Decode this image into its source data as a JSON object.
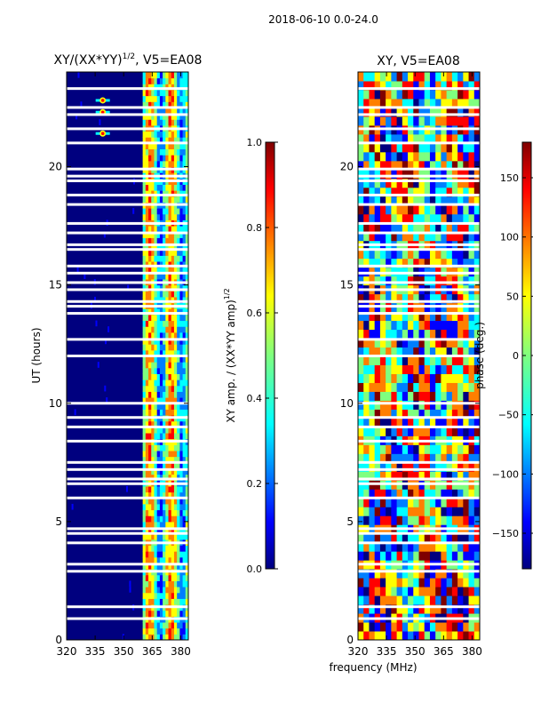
{
  "figure": {
    "suptitle": "2018-06-10 0.0-24.0",
    "xlabel_shared": "frequency (MHz)",
    "colors": {
      "background": "#00007f",
      "jet": [
        "#00007f",
        "#0000ff",
        "#007fff",
        "#00ffff",
        "#7fff7f",
        "#ffff00",
        "#ff7f00",
        "#ff0000",
        "#7f0000"
      ]
    }
  },
  "chart_data": [
    {
      "type": "heatmap",
      "name": "xy-normalized-amplitude",
      "title": "XY/(XX*YY)",
      "title_superscript": "1/2",
      "title_suffix": ", V5=EA08",
      "xlabel": "",
      "ylabel": "UT (hours)",
      "xlim": [
        320,
        384
      ],
      "ylim": [
        0,
        24
      ],
      "xticks": [
        "320",
        "335",
        "350",
        "365",
        "380"
      ],
      "xtick_values": [
        320,
        335,
        350,
        365,
        380
      ],
      "yticks": [
        "0",
        "5",
        "10",
        "15",
        "20"
      ],
      "ytick_values": [
        0,
        5,
        10,
        15,
        20
      ],
      "bright_band_mhz": [
        360,
        383
      ],
      "hot_spots": [
        {
          "x": 339,
          "y": 22.8
        },
        {
          "x": 339,
          "y": 22.3
        },
        {
          "x": 339,
          "y": 21.4
        }
      ],
      "blank_rows_hours": [
        0.9,
        1.4,
        2.9,
        3.2,
        4.1,
        4.5,
        4.7,
        6.0,
        6.6,
        6.8,
        7.2,
        7.5,
        8.4,
        9.0,
        9.4,
        10.0,
        12.0,
        12.7,
        13.8,
        14.1,
        14.3,
        14.8,
        15.1,
        15.5,
        15.8,
        16.5,
        16.7,
        17.2,
        17.6,
        18.4,
        18.8,
        19.4,
        19.6,
        19.9,
        21.0,
        21.6,
        22.2,
        22.5,
        23.3
      ],
      "colorbar": {
        "label": "XY amp. / (XX*YY amp)",
        "label_superscript": "1/2",
        "range": [
          0.0,
          1.0
        ],
        "ticks": [
          "0.0",
          "0.2",
          "0.4",
          "0.6",
          "0.8",
          "1.0"
        ],
        "tick_values": [
          0.0,
          0.2,
          0.4,
          0.6,
          0.8,
          1.0
        ]
      }
    },
    {
      "type": "heatmap",
      "name": "xy-phase",
      "title": "XY, V5=EA08",
      "xlabel": "frequency (MHz)",
      "ylabel": "",
      "xlim": [
        320,
        384
      ],
      "ylim": [
        0,
        24
      ],
      "xticks": [
        "320",
        "335",
        "350",
        "365",
        "380"
      ],
      "xtick_values": [
        320,
        335,
        350,
        365,
        380
      ],
      "yticks": [
        "0",
        "5",
        "10",
        "15",
        "20"
      ],
      "ytick_values": [
        0,
        5,
        10,
        15,
        20
      ],
      "blank_rows_hours": [
        0.9,
        1.4,
        2.9,
        3.2,
        4.1,
        4.5,
        4.7,
        6.0,
        6.6,
        6.8,
        7.2,
        7.5,
        8.4,
        9.0,
        9.4,
        10.0,
        12.0,
        12.7,
        13.8,
        14.1,
        14.3,
        14.8,
        15.1,
        15.5,
        15.8,
        16.5,
        16.7,
        17.2,
        17.6,
        18.4,
        18.8,
        19.4,
        19.6,
        19.9,
        21.0,
        21.6,
        22.2,
        22.5,
        23.3
      ],
      "colorbar": {
        "label": "phase (deg.)",
        "range": [
          -180,
          180
        ],
        "ticks": [
          "−150",
          "−100",
          "−50",
          "0",
          "50",
          "100",
          "150"
        ],
        "tick_values": [
          -150,
          -100,
          -50,
          0,
          50,
          100,
          150
        ]
      }
    }
  ]
}
